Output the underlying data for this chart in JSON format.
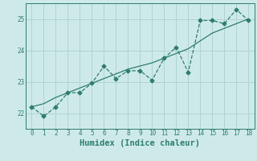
{
  "xlabel": "Humidex (Indice chaleur)",
  "x": [
    0,
    1,
    2,
    3,
    4,
    5,
    6,
    7,
    8,
    9,
    10,
    11,
    12,
    13,
    14,
    15,
    16,
    17,
    18
  ],
  "y_line": [
    22.2,
    21.9,
    22.2,
    22.65,
    22.65,
    22.95,
    23.5,
    23.1,
    23.35,
    23.35,
    23.05,
    23.75,
    24.1,
    23.3,
    24.95,
    24.95,
    24.85,
    25.3,
    24.95
  ],
  "y_trend": [
    22.2,
    22.3,
    22.5,
    22.65,
    22.8,
    22.95,
    23.1,
    23.25,
    23.4,
    23.5,
    23.6,
    23.75,
    23.9,
    24.05,
    24.3,
    24.55,
    24.7,
    24.85,
    25.0
  ],
  "line_color": "#2e7d6e",
  "bg_color": "#ceeae8",
  "grid_color": "#afd4d0",
  "ylim": [
    21.5,
    25.5
  ],
  "yticks": [
    22,
    23,
    24,
    25
  ],
  "xlim": [
    -0.5,
    18.5
  ],
  "xlabel_fontsize": 7.5
}
